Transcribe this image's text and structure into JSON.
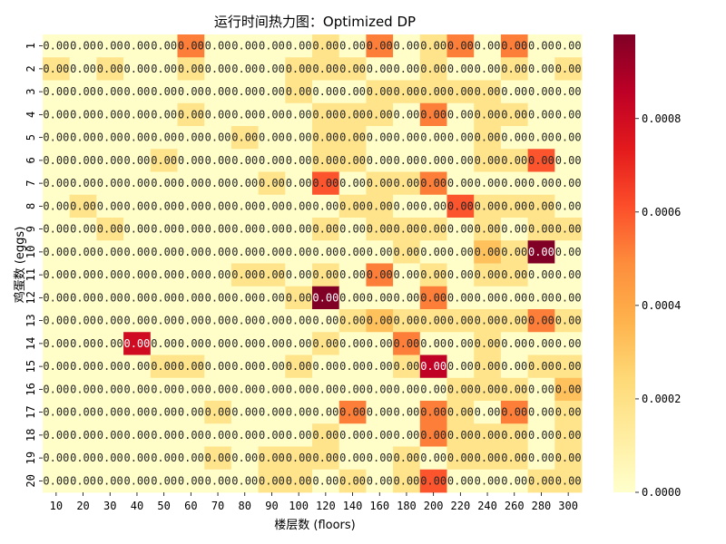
{
  "chart_data": {
    "type": "heatmap",
    "title": "运行时间热力图：Optimized DP",
    "xlabel": "楼层数 (floors)",
    "ylabel": "鸡蛋数 (eggs)",
    "x_categories": [
      "10",
      "20",
      "30",
      "40",
      "50",
      "60",
      "70",
      "80",
      "90",
      "100",
      "120",
      "140",
      "160",
      "180",
      "200",
      "220",
      "240",
      "260",
      "280",
      "300"
    ],
    "y_categories": [
      "1",
      "2",
      "3",
      "4",
      "5",
      "6",
      "7",
      "8",
      "9",
      "10",
      "11",
      "12",
      "13",
      "14",
      "15",
      "16",
      "17",
      "18",
      "19",
      "20"
    ],
    "cell_label": "0.00",
    "values": [
      [
        1e-05,
        1e-05,
        1e-05,
        1e-05,
        1e-05,
        0.00052,
        1e-05,
        1e-05,
        1e-05,
        1e-05,
        0.00018,
        1e-05,
        0.00052,
        1e-05,
        0.00018,
        0.00052,
        1e-05,
        0.00052,
        1e-05,
        1e-05
      ],
      [
        0.00018,
        1e-05,
        0.00018,
        1e-05,
        1e-05,
        0.00018,
        1e-05,
        1e-05,
        1e-05,
        0.00018,
        0.00018,
        0.00018,
        1e-05,
        1e-05,
        0.00018,
        1e-05,
        1e-05,
        0.00018,
        1e-05,
        0.00018
      ],
      [
        1e-05,
        1e-05,
        1e-05,
        1e-05,
        1e-05,
        1e-05,
        1e-05,
        1e-05,
        1e-05,
        0.00018,
        1e-05,
        1e-05,
        0.00018,
        0.00018,
        0.00018,
        0.00018,
        0.00018,
        1e-05,
        1e-05,
        1e-05
      ],
      [
        1e-05,
        1e-05,
        1e-05,
        1e-05,
        1e-05,
        0.00018,
        1e-05,
        1e-05,
        1e-05,
        1e-05,
        0.00018,
        0.00018,
        0.00018,
        1e-05,
        0.00052,
        1e-05,
        0.00018,
        0.00018,
        1e-05,
        1e-05
      ],
      [
        1e-05,
        1e-05,
        1e-05,
        1e-05,
        1e-05,
        1e-05,
        1e-05,
        0.00018,
        1e-05,
        1e-05,
        0.00018,
        0.00018,
        1e-05,
        1e-05,
        1e-05,
        1e-05,
        0.00018,
        1e-05,
        1e-05,
        1e-05
      ],
      [
        1e-05,
        1e-05,
        1e-05,
        1e-05,
        0.00018,
        1e-05,
        1e-05,
        1e-05,
        1e-05,
        1e-05,
        0.00018,
        0.00018,
        1e-05,
        1e-05,
        1e-05,
        1e-05,
        0.00018,
        0.00018,
        0.0006,
        1e-05
      ],
      [
        1e-05,
        1e-05,
        1e-05,
        1e-05,
        1e-05,
        1e-05,
        1e-05,
        1e-05,
        0.00018,
        1e-05,
        0.0006,
        1e-05,
        0.00018,
        0.00018,
        0.00052,
        1e-05,
        1e-05,
        1e-05,
        1e-05,
        1e-05
      ],
      [
        1e-05,
        0.00018,
        1e-05,
        1e-05,
        1e-05,
        1e-05,
        1e-05,
        1e-05,
        1e-05,
        1e-05,
        1e-05,
        0.00018,
        0.00018,
        1e-05,
        1e-05,
        0.0006,
        0.00018,
        0.00018,
        0.00018,
        1e-05
      ],
      [
        1e-05,
        1e-05,
        0.00018,
        1e-05,
        1e-05,
        1e-05,
        1e-05,
        1e-05,
        1e-05,
        1e-05,
        0.00018,
        1e-05,
        0.00018,
        0.00018,
        0.00018,
        1e-05,
        0.00018,
        1e-05,
        0.00018,
        0.00018
      ],
      [
        1e-05,
        1e-05,
        1e-05,
        1e-05,
        1e-05,
        1e-05,
        1e-05,
        1e-05,
        1e-05,
        1e-05,
        1e-05,
        1e-05,
        1e-05,
        0.00018,
        1e-05,
        1e-05,
        0.00032,
        0.00018,
        0.00098,
        1e-05
      ],
      [
        1e-05,
        1e-05,
        1e-05,
        1e-05,
        1e-05,
        1e-05,
        1e-05,
        0.00018,
        0.00018,
        1e-05,
        0.00018,
        1e-05,
        0.00052,
        1e-05,
        0.00018,
        1e-05,
        0.00018,
        0.00018,
        1e-05,
        1e-05
      ],
      [
        1e-05,
        1e-05,
        1e-05,
        1e-05,
        1e-05,
        1e-05,
        1e-05,
        1e-05,
        1e-05,
        0.00018,
        0.001,
        1e-05,
        1e-05,
        1e-05,
        0.00052,
        1e-05,
        1e-05,
        1e-05,
        1e-05,
        1e-05
      ],
      [
        1e-05,
        1e-05,
        1e-05,
        1e-05,
        1e-05,
        1e-05,
        1e-05,
        1e-05,
        1e-05,
        1e-05,
        1e-05,
        0.00018,
        0.00032,
        0.00018,
        0.00018,
        0.00018,
        0.00018,
        0.00018,
        0.00052,
        0.00018
      ],
      [
        1e-05,
        1e-05,
        1e-05,
        0.0008,
        1e-05,
        1e-05,
        1e-05,
        1e-05,
        1e-05,
        1e-05,
        0.00018,
        1e-05,
        1e-05,
        0.00052,
        1e-05,
        1e-05,
        0.00018,
        1e-05,
        1e-05,
        1e-05
      ],
      [
        1e-05,
        1e-05,
        1e-05,
        1e-05,
        0.00018,
        0.00018,
        1e-05,
        1e-05,
        1e-05,
        0.00018,
        1e-05,
        1e-05,
        1e-05,
        0.00018,
        0.00085,
        1e-05,
        0.00018,
        1e-05,
        0.00018,
        0.00018
      ],
      [
        1e-05,
        1e-05,
        1e-05,
        1e-05,
        1e-05,
        1e-05,
        1e-05,
        1e-05,
        1e-05,
        1e-05,
        1e-05,
        1e-05,
        1e-05,
        1e-05,
        1e-05,
        0.00018,
        0.00018,
        0.00018,
        1e-05,
        0.00032
      ],
      [
        1e-05,
        1e-05,
        1e-05,
        1e-05,
        1e-05,
        1e-05,
        0.00018,
        1e-05,
        1e-05,
        1e-05,
        1e-05,
        0.00052,
        1e-05,
        1e-05,
        0.00052,
        0.00018,
        1e-05,
        0.00052,
        1e-05,
        0.00018
      ],
      [
        1e-05,
        1e-05,
        1e-05,
        1e-05,
        1e-05,
        1e-05,
        1e-05,
        1e-05,
        1e-05,
        1e-05,
        0.00018,
        1e-05,
        1e-05,
        1e-05,
        0.00052,
        0.00018,
        0.00018,
        0.00018,
        1e-05,
        0.00018
      ],
      [
        1e-05,
        1e-05,
        1e-05,
        1e-05,
        1e-05,
        1e-05,
        0.00018,
        1e-05,
        0.00018,
        0.00018,
        0.00018,
        1e-05,
        1e-05,
        0.00018,
        1e-05,
        0.00018,
        0.00018,
        0.00018,
        1e-05,
        0.00018
      ],
      [
        1e-05,
        1e-05,
        1e-05,
        1e-05,
        1e-05,
        1e-05,
        1e-05,
        1e-05,
        0.00018,
        0.00018,
        1e-05,
        0.00018,
        1e-05,
        0.00018,
        0.0006,
        1e-05,
        1e-05,
        1e-05,
        0.00018,
        0.00018
      ]
    ],
    "colorbar": {
      "min": 0,
      "max": 0.00098,
      "ticks": [
        0,
        0.0002,
        0.0004,
        0.0006,
        0.0008
      ],
      "tick_labels": [
        "0.0000",
        "0.0002",
        "0.0004",
        "0.0006",
        "0.0008"
      ]
    },
    "colormap": "YlOrRd",
    "colormap_stops": [
      "#ffffcc",
      "#ffeda0",
      "#fed976",
      "#feb24c",
      "#fd8d3c",
      "#fc4e2a",
      "#e31a1c",
      "#bd0026",
      "#800026"
    ]
  }
}
